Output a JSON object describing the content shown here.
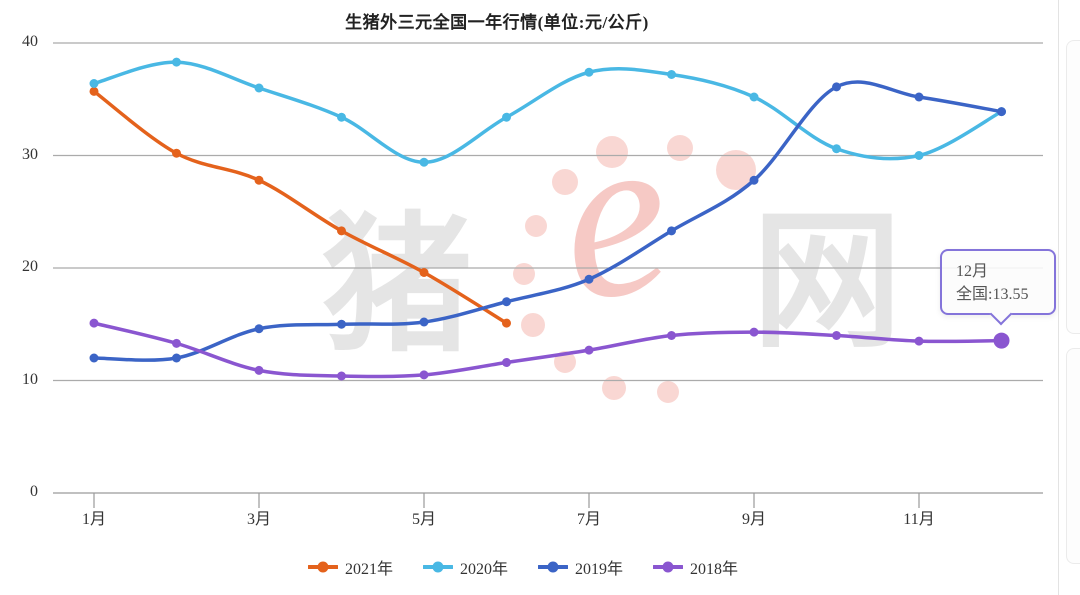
{
  "title": "生猪外三元全国一年行情(单位:元/公斤)",
  "watermark": {
    "text_left": "猪",
    "text_e": "e",
    "text_right": "网"
  },
  "tooltip": {
    "month": "12月",
    "value_label": "全国:13.55"
  },
  "chart_data": {
    "type": "line",
    "title": "生猪外三元全国一年行情(单位:元/公斤)",
    "unit": "元/公斤",
    "categories": [
      "1月",
      "2月",
      "3月",
      "4月",
      "5月",
      "6月",
      "7月",
      "8月",
      "9月",
      "10月",
      "11月",
      "12月"
    ],
    "x_tick_labels_shown": [
      "1月",
      "3月",
      "5月",
      "7月",
      "9月",
      "11月"
    ],
    "yticks": [
      0,
      10,
      20,
      30,
      40
    ],
    "ylim": [
      0,
      40
    ],
    "grid": true,
    "legend_position": "bottom",
    "series": [
      {
        "key": "2021",
        "name": "2021年",
        "color": "#e4621c",
        "values": [
          35.7,
          30.2,
          27.8,
          23.3,
          19.6,
          15.1
        ]
      },
      {
        "key": "2020",
        "name": "2020年",
        "color": "#49b8e4",
        "values": [
          36.4,
          38.3,
          36.0,
          33.4,
          29.4,
          33.4,
          37.4,
          37.2,
          35.2,
          30.6,
          30.0,
          33.9
        ]
      },
      {
        "key": "2019",
        "name": "2019年",
        "color": "#3b64c6",
        "values": [
          12.0,
          12.0,
          14.6,
          15.0,
          15.2,
          17.0,
          19.0,
          23.3,
          27.8,
          36.1,
          35.2,
          33.9
        ]
      },
      {
        "key": "2018",
        "name": "2018年",
        "color": "#8a56d0",
        "values": [
          15.1,
          13.3,
          10.9,
          10.4,
          10.5,
          11.6,
          12.7,
          14.0,
          14.3,
          14.0,
          13.5,
          13.55
        ]
      }
    ],
    "highlight": {
      "series_key": "2018",
      "month_index": 11,
      "value": 13.55
    }
  }
}
